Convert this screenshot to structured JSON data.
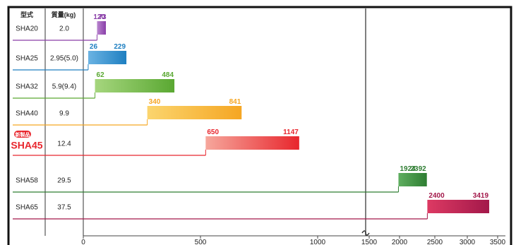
{
  "chart_data": {
    "type": "range-bar",
    "title": "",
    "columns": {
      "model_header": "型式",
      "weight_header": "質量(kg)"
    },
    "new_badge": "新製品",
    "x_ticks": [
      "0",
      "500",
      "1000",
      "1500",
      "2000",
      "2500",
      "3000",
      "3500"
    ],
    "x_axis_break": true,
    "xlim": [
      0,
      3500
    ],
    "grid": false,
    "rows": [
      {
        "model": "SHA20",
        "weight": "2.0",
        "min": 73,
        "max": 120,
        "color": "#8a3fa8",
        "color_light": "#b985cf",
        "is_new": false
      },
      {
        "model": "SHA25",
        "weight": "2.95(5.0)",
        "min": 26,
        "max": 229,
        "color": "#1e7fc1",
        "color_light": "#6bb3e3",
        "is_new": false
      },
      {
        "model": "SHA32",
        "weight": "5.9(9.4)",
        "min": 62,
        "max": 484,
        "color": "#5aa832",
        "color_light": "#a6d67e",
        "is_new": false
      },
      {
        "model": "SHA40",
        "weight": "9.9",
        "min": 340,
        "max": 841,
        "color": "#f5a623",
        "color_light": "#fbd56e",
        "is_new": false
      },
      {
        "model": "SHA45",
        "weight": "12.4",
        "min": 650,
        "max": 1147,
        "color": "#e8262d",
        "color_light": "#f6a79c",
        "is_new": true
      },
      {
        "model": "SHA58",
        "weight": "29.5",
        "min": 1924,
        "max": 2392,
        "color": "#2e7d32",
        "color_light": "#5fae60",
        "is_new": false
      },
      {
        "model": "SHA65",
        "weight": "37.5",
        "min": 2400,
        "max": 3419,
        "color": "#a3184a",
        "color_light": "#dd3a63",
        "is_new": false
      }
    ]
  }
}
